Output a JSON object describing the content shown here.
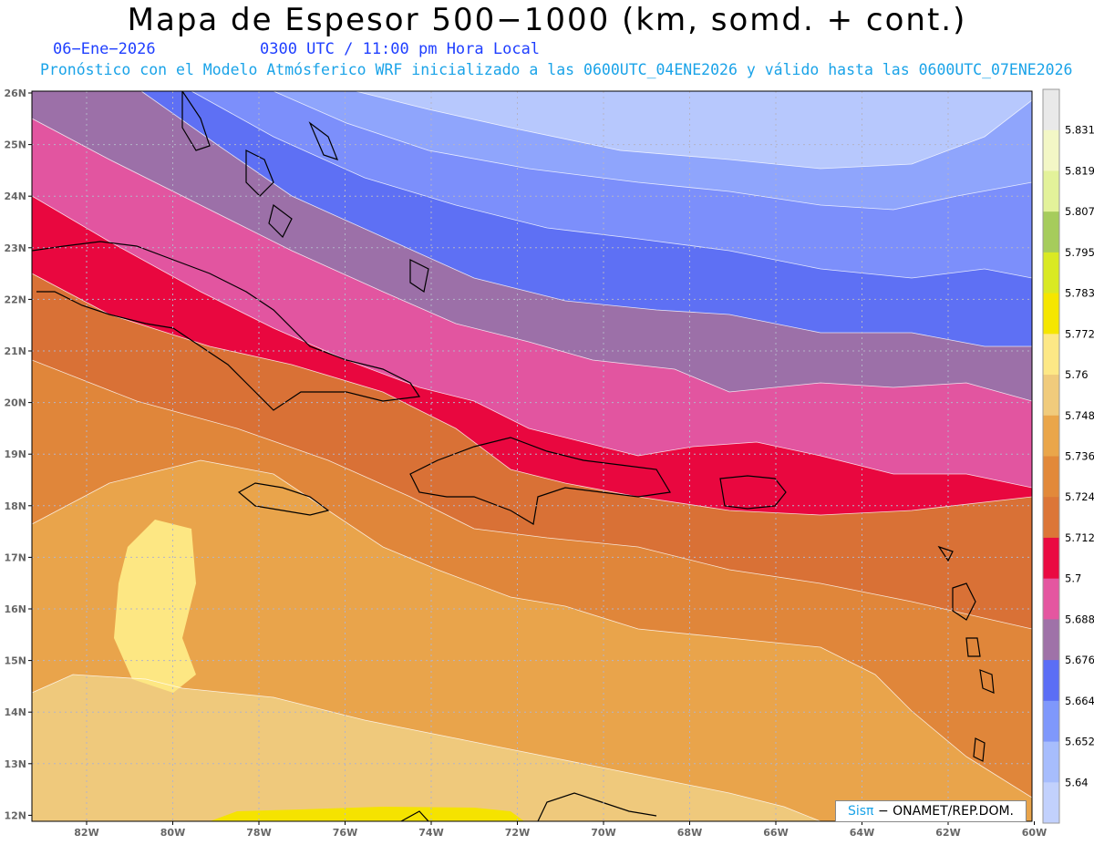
{
  "header": {
    "title": "Mapa de Espesor 500−1000 (km, somd. + cont.)",
    "date": "06−Ene−2026",
    "time": "0300 UTC / 11:00 pm Hora Local",
    "forecast": "Pronóstico con el Modelo Atmósferico WRF inicializado a las 0600UTC_04ENE2026 y válido hasta las  0600UTC_07ENE2026"
  },
  "axes": {
    "lat_labels": [
      "26N",
      "25N",
      "24N",
      "23N",
      "22N",
      "21N",
      "20N",
      "19N",
      "18N",
      "17N",
      "16N",
      "15N",
      "14N",
      "13N",
      "12N"
    ],
    "lon_labels": [
      "82W",
      "80W",
      "78W",
      "76W",
      "74W",
      "72W",
      "70W",
      "68W",
      "66W",
      "64W",
      "62W",
      "60W"
    ]
  },
  "colorbar": {
    "labels": [
      "5.831",
      "5.819",
      "5.807",
      "5.795",
      "5.783",
      "5.772",
      "5.76",
      "5.748",
      "5.736",
      "5.724",
      "5.712",
      "5.7",
      "5.688",
      "5.676",
      "5.664",
      "5.652",
      "5.64"
    ],
    "colors": [
      "#e9e9e9",
      "#f3f7c6",
      "#e3f29a",
      "#a6cc5c",
      "#d9e923",
      "#f5e600",
      "#fde886",
      "#f0cb7c",
      "#eaa64a",
      "#e2893a",
      "#dc7638",
      "#ea0a42",
      "#e456a0",
      "#9f72a8",
      "#5b6ef5",
      "#7f98fb",
      "#a7bdfd",
      "#c2d1fd"
    ]
  },
  "credit": {
    "logo": "Sisπ",
    "text": "− ONAMET/REP.DOM."
  }
}
